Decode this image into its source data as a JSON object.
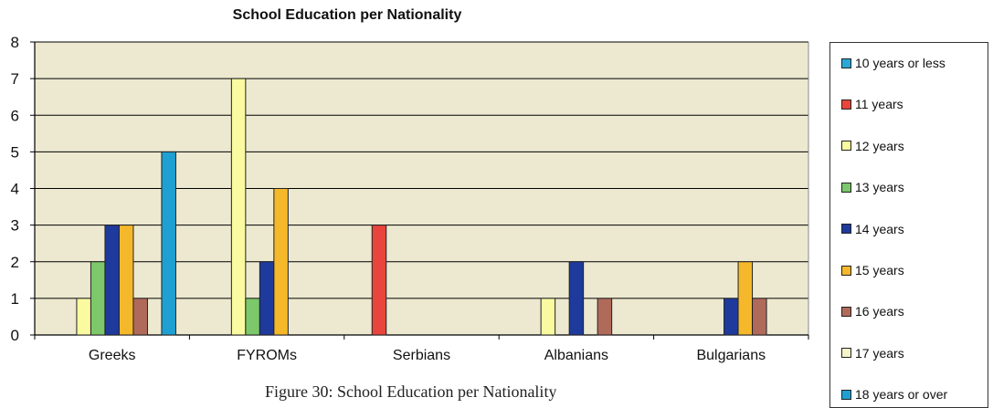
{
  "caption": "Figure 30: School Education per Nationality",
  "chart_data": {
    "type": "bar",
    "title": "School Education per Nationality",
    "xlabel": "",
    "ylabel": "",
    "ylim": [
      0,
      8
    ],
    "yticks": [
      "0",
      "1",
      "2",
      "3",
      "4",
      "5",
      "6",
      "7",
      "8"
    ],
    "grid": true,
    "legend_position": "right",
    "plot_background": "#ECE9D0",
    "categories": [
      "Greeks",
      "FYROMs",
      "Serbians",
      "Albanians",
      "Bulgarians"
    ],
    "series": [
      {
        "name": "10 years or less",
        "color": "#2AA7D6",
        "values": [
          0,
          0,
          0,
          0,
          0
        ]
      },
      {
        "name": "11 years",
        "color": "#E8453C",
        "values": [
          0,
          0,
          3,
          0,
          0
        ]
      },
      {
        "name": "12 years",
        "color": "#FAFAA0",
        "values": [
          1,
          7,
          0,
          1,
          0
        ]
      },
      {
        "name": "13 years",
        "color": "#7CC86A",
        "values": [
          2,
          1,
          0,
          0,
          0
        ]
      },
      {
        "name": "14 years",
        "color": "#1E3A9C",
        "values": [
          3,
          2,
          0,
          2,
          1
        ]
      },
      {
        "name": "15 years",
        "color": "#F5B82A",
        "values": [
          3,
          4,
          0,
          0,
          2
        ]
      },
      {
        "name": "16 years",
        "color": "#B06A5A",
        "values": [
          1,
          0,
          0,
          1,
          1
        ]
      },
      {
        "name": "17 years",
        "color": "#F4F4C8",
        "values": [
          0,
          0,
          0,
          0,
          0
        ]
      },
      {
        "name": "18 years or over",
        "color": "#1EA0D2",
        "values": [
          5,
          0,
          0,
          0,
          0
        ]
      }
    ]
  }
}
